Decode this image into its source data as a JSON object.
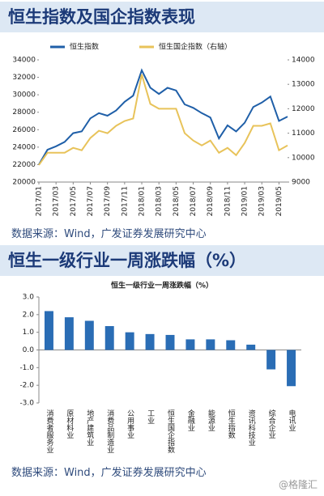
{
  "header1": "恒生指数及国企指数表现",
  "source1": "数据来源：Wind，广发证券发展研究中心",
  "header2": "恒生一级行业一周涨跌幅（%）",
  "source2": "数据来源：Wind，广发证券发展研究中心",
  "watermark": "@格隆汇",
  "chart_data": [
    {
      "type": "line",
      "x": [
        "2017/01",
        "2017/02",
        "2017/03",
        "2017/04",
        "2017/05",
        "2017/06",
        "2017/07",
        "2017/08",
        "2017/09",
        "2017/10",
        "2017/11",
        "2017/12",
        "2018/01",
        "2018/02",
        "2018/03",
        "2018/04",
        "2018/05",
        "2018/06",
        "2018/07",
        "2018/08",
        "2018/09",
        "2018/10",
        "2018/11",
        "2018/12",
        "2019/01",
        "2019/02",
        "2019/03",
        "2019/04",
        "2019/05",
        "2019/06"
      ],
      "xticks": [
        "2017/01",
        "2017/03",
        "2017/05",
        "2017/07",
        "2017/09",
        "2017/11",
        "2018/01",
        "2018/03",
        "2018/05",
        "2018/07",
        "2018/09",
        "2018/11",
        "2019/01",
        "2019/03",
        "2019/05"
      ],
      "series": [
        {
          "name": "恒生指数",
          "color": "#1f5fa8",
          "values": [
            22000,
            23700,
            24100,
            24600,
            25600,
            25800,
            27300,
            27900,
            27600,
            28200,
            29200,
            29900,
            32800,
            30800,
            30100,
            30800,
            30500,
            28900,
            28500,
            27900,
            27400,
            25000,
            26500,
            25800,
            26800,
            28600,
            29100,
            29800,
            27000,
            27500
          ]
        },
        {
          "name": "恒生国企指数（右轴）",
          "color": "#e8c35a",
          "axis": "y2",
          "values": [
            9700,
            10200,
            10200,
            10200,
            10400,
            10300,
            10800,
            11100,
            11000,
            11300,
            11500,
            11600,
            13400,
            12200,
            12000,
            12000,
            12000,
            11000,
            10700,
            10500,
            10700,
            10200,
            10400,
            10100,
            10600,
            11300,
            11300,
            11400,
            10300,
            10500
          ]
        }
      ],
      "ylim": [
        20000,
        34000
      ],
      "yticks": [
        20000,
        22000,
        24000,
        26000,
        28000,
        30000,
        32000,
        34000
      ],
      "y2lim": [
        9000,
        14000
      ],
      "y2ticks": [
        9000,
        10000,
        11000,
        12000,
        13000,
        14000
      ]
    },
    {
      "type": "bar",
      "title": "恒生一级行业一周涨跌幅（%）",
      "color": "#2a6db5",
      "categories": [
        "消费者服务业",
        "原材料业",
        "地产建筑业",
        "消费品制造业",
        "公用事业",
        "工业",
        "恒生国企指数",
        "金融业",
        "能源业",
        "恒生指数",
        "资讯科技业",
        "综合企业",
        "电讯业"
      ],
      "values": [
        2.2,
        1.85,
        1.65,
        1.35,
        1.0,
        0.9,
        0.85,
        0.6,
        0.6,
        0.55,
        0.3,
        -1.1,
        -2.05
      ],
      "ylim": [
        -3,
        3
      ],
      "yticks": [
        {
          "value": -3,
          "label": "-3.0"
        },
        {
          "value": -2,
          "label": "-2.0"
        },
        {
          "value": -1,
          "label": "-1.0"
        },
        {
          "value": 0,
          "label": "0.0"
        },
        {
          "value": 1,
          "label": "1.0"
        },
        {
          "value": 2,
          "label": "2.0"
        },
        {
          "value": 3,
          "label": "3.0"
        }
      ]
    }
  ]
}
